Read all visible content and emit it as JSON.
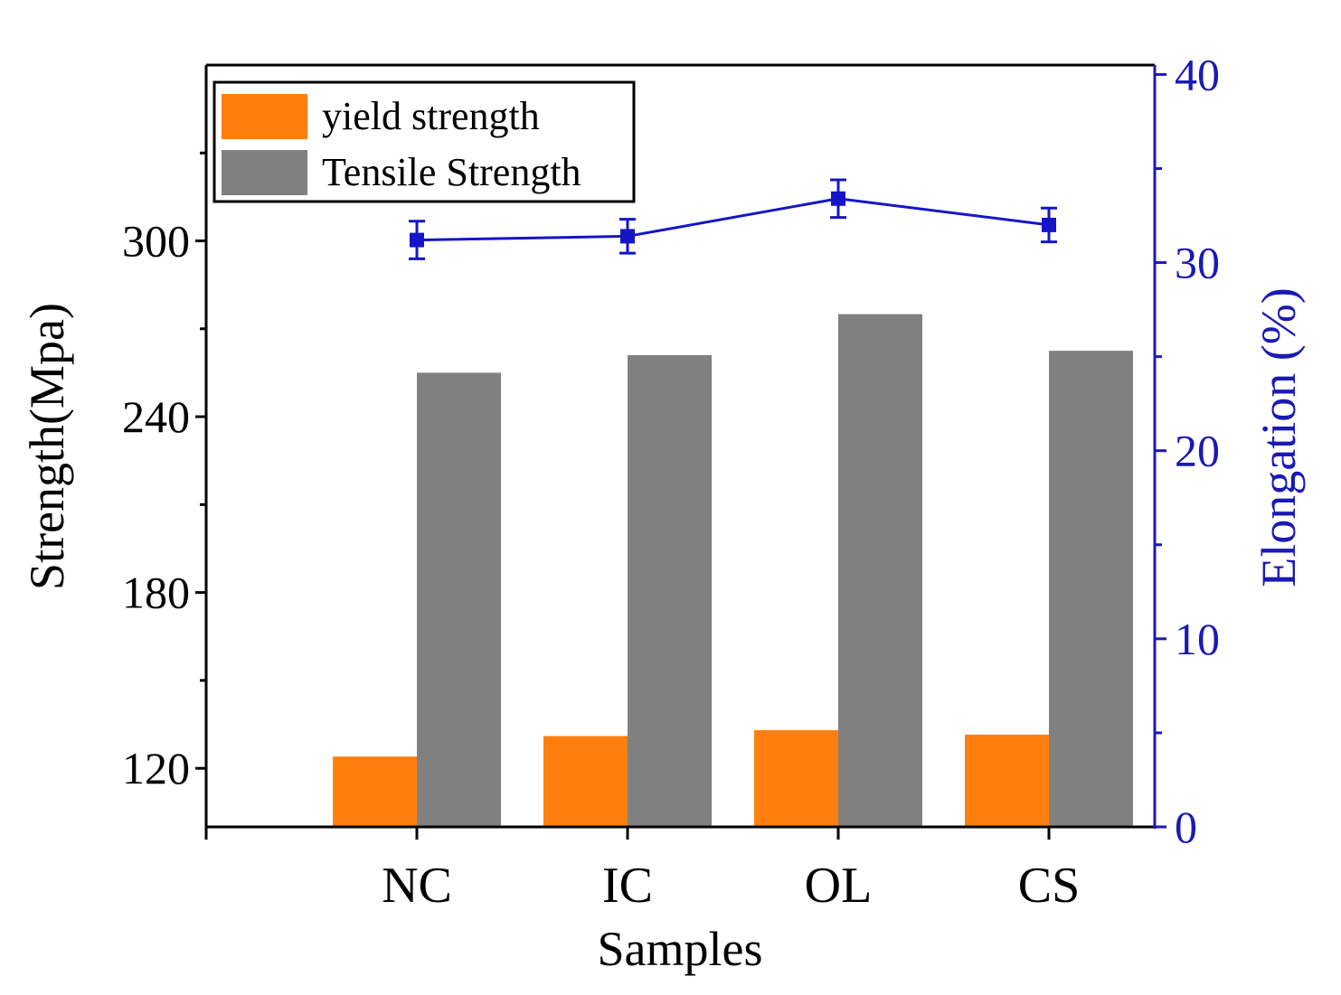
{
  "chart_data": {
    "type": "bar",
    "xlabel": "Samples",
    "ylabel": "Strength(Mpa)",
    "y2label": "Elongation (%)",
    "categories": [
      "NC",
      "IC",
      "OL",
      "CS"
    ],
    "ylim": [
      100,
      360
    ],
    "yticks": [
      "120",
      "180",
      "240",
      "300"
    ],
    "y2lim": [
      0,
      40.5
    ],
    "y2ticks": [
      "0",
      "10",
      "20",
      "30",
      "40"
    ],
    "series": [
      {
        "name": "yield strength",
        "kind": "bar",
        "axis": "left",
        "values": [
          124,
          131,
          133,
          131.5
        ]
      },
      {
        "name": "Tensile Strength",
        "kind": "bar",
        "axis": "left",
        "values": [
          255,
          261,
          275,
          262.5
        ]
      }
    ],
    "elongation": {
      "kind": "line",
      "axis": "right",
      "values": [
        31.2,
        31.4,
        33.4,
        32.0
      ],
      "errors": [
        1.0,
        0.9,
        1.0,
        0.9
      ]
    },
    "legend_position": "top-left",
    "colors": {
      "yield": "#ff7f0e",
      "tensile": "#808080",
      "elongation": "#1515c8",
      "right_axis": "#1a1ab4",
      "axis": "#000000"
    }
  }
}
